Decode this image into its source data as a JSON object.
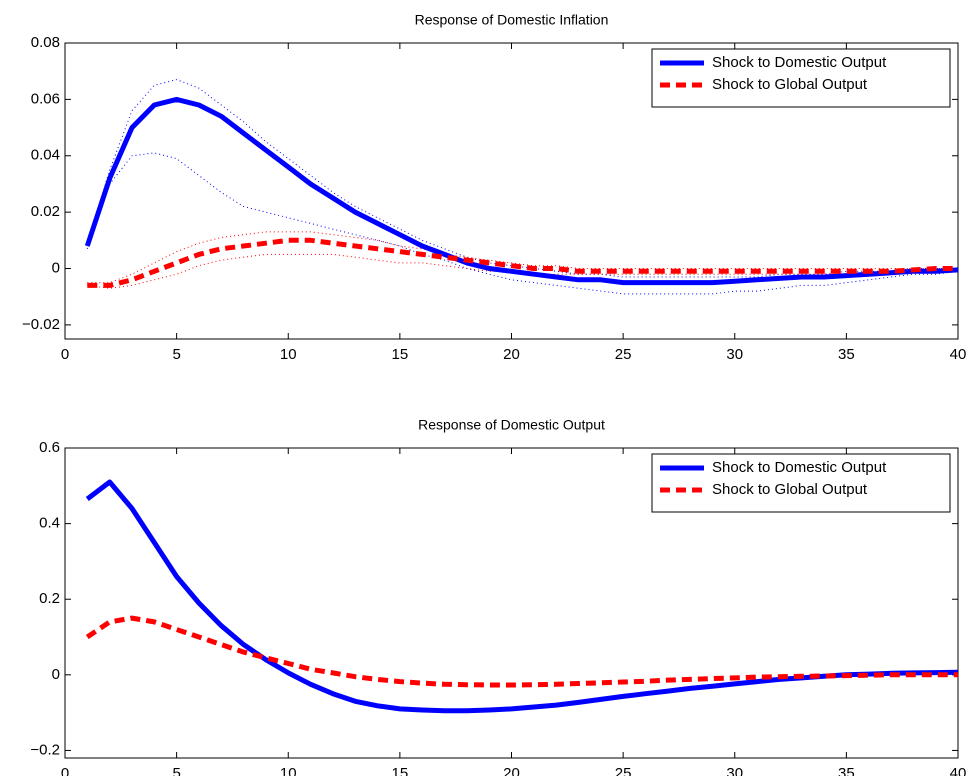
{
  "chart_data": [
    {
      "type": "line",
      "title": "Response of Domestic Inflation",
      "x": [
        1,
        2,
        3,
        4,
        5,
        6,
        7,
        8,
        9,
        10,
        11,
        12,
        13,
        14,
        15,
        16,
        17,
        18,
        19,
        20,
        21,
        22,
        23,
        24,
        25,
        26,
        27,
        28,
        29,
        30,
        31,
        32,
        33,
        34,
        35,
        36,
        37,
        38,
        39,
        40
      ],
      "xlim": [
        0,
        40
      ],
      "xticks": [
        0,
        5,
        10,
        15,
        20,
        25,
        30,
        35,
        40
      ],
      "ylim": [
        -0.025,
        0.08
      ],
      "yticks": [
        {
          "value": -0.02,
          "label": "−0.02"
        },
        0,
        0.02,
        0.04,
        0.06,
        0.08
      ],
      "grid": false,
      "legend": "upper-right",
      "series": [
        {
          "name": "Shock to Domestic Output",
          "color": "#0000ff",
          "style": "solid",
          "values": [
            0.008,
            0.032,
            0.05,
            0.058,
            0.06,
            0.058,
            0.054,
            0.048,
            0.042,
            0.036,
            0.03,
            0.025,
            0.02,
            0.016,
            0.012,
            0.008,
            0.005,
            0.002,
            0.0,
            -0.001,
            -0.002,
            -0.003,
            -0.004,
            -0.004,
            -0.005,
            -0.005,
            -0.005,
            -0.005,
            -0.005,
            -0.0045,
            -0.004,
            -0.0035,
            -0.003,
            -0.003,
            -0.0025,
            -0.002,
            -0.0015,
            -0.001,
            -0.001,
            -0.0005
          ]
        },
        {
          "name": "Shock to Global Output",
          "color": "#ff0000",
          "style": "dashed",
          "values": [
            -0.006,
            -0.006,
            -0.004,
            -0.001,
            0.002,
            0.005,
            0.007,
            0.008,
            0.009,
            0.01,
            0.01,
            0.009,
            0.008,
            0.007,
            0.006,
            0.005,
            0.004,
            0.003,
            0.002,
            0.001,
            0.0,
            0.0,
            -0.001,
            -0.001,
            -0.001,
            -0.001,
            -0.001,
            -0.001,
            -0.001,
            -0.001,
            -0.001,
            -0.001,
            -0.001,
            -0.001,
            -0.001,
            -0.001,
            -0.001,
            -0.0005,
            0.0,
            0.0
          ]
        }
      ],
      "bands": [
        {
          "color": "#0000ff",
          "upper": [
            0.009,
            0.035,
            0.056,
            0.065,
            0.067,
            0.064,
            0.058,
            0.052,
            0.045,
            0.039,
            0.033,
            0.027,
            0.022,
            0.018,
            0.014,
            0.01,
            0.007,
            0.004,
            0.002,
            0.001,
            0,
            -0.001,
            -0.002,
            -0.002,
            -0.003,
            -0.003,
            -0.003,
            -0.003,
            -0.003,
            -0.003,
            -0.003,
            -0.002,
            -0.002,
            -0.002,
            -0.001,
            -0.001,
            -0.001,
            0,
            0,
            0
          ],
          "lower": [
            0.007,
            0.03,
            0.04,
            0.041,
            0.039,
            0.033,
            0.027,
            0.022,
            0.02,
            0.018,
            0.016,
            0.014,
            0.012,
            0.01,
            0.008,
            0.005,
            0.003,
            0.0,
            -0.002,
            -0.004,
            -0.005,
            -0.006,
            -0.007,
            -0.008,
            -0.009,
            -0.009,
            -0.009,
            -0.009,
            -0.009,
            -0.008,
            -0.008,
            -0.007,
            -0.006,
            -0.006,
            -0.005,
            -0.004,
            -0.003,
            -0.002,
            -0.002,
            -0.001
          ]
        },
        {
          "color": "#ff0000",
          "upper": [
            -0.005,
            -0.005,
            -0.002,
            0.002,
            0.006,
            0.009,
            0.011,
            0.012,
            0.013,
            0.013,
            0.013,
            0.012,
            0.011,
            0.01,
            0.008,
            0.007,
            0.005,
            0.004,
            0.003,
            0.002,
            0.001,
            0.001,
            0,
            0,
            0,
            0,
            0,
            0,
            0,
            0,
            0,
            0,
            0,
            0,
            0,
            0,
            0,
            0,
            0,
            0
          ],
          "lower": [
            -0.006,
            -0.007,
            -0.006,
            -0.004,
            -0.002,
            0.001,
            0.003,
            0.004,
            0.005,
            0.005,
            0.005,
            0.005,
            0.004,
            0.003,
            0.002,
            0.002,
            0.001,
            0,
            -0.001,
            -0.001,
            -0.002,
            -0.002,
            -0.002,
            -0.002,
            -0.002,
            -0.002,
            -0.002,
            -0.002,
            -0.002,
            -0.002,
            -0.002,
            -0.002,
            -0.002,
            -0.002,
            -0.002,
            -0.002,
            -0.002,
            -0.001,
            -0.001,
            -0.001
          ]
        }
      ]
    },
    {
      "type": "line",
      "title": "Response of Domestic Output",
      "x": [
        1,
        2,
        3,
        4,
        5,
        6,
        7,
        8,
        9,
        10,
        11,
        12,
        13,
        14,
        15,
        16,
        17,
        18,
        19,
        20,
        21,
        22,
        23,
        24,
        25,
        26,
        27,
        28,
        29,
        30,
        31,
        32,
        33,
        34,
        35,
        36,
        37,
        38,
        39,
        40
      ],
      "xlim": [
        0,
        40
      ],
      "xticks": [
        0,
        5,
        10,
        15,
        20,
        25,
        30,
        35,
        40
      ],
      "ylim": [
        -0.22,
        0.6
      ],
      "yticks": [
        {
          "value": -0.2,
          "label": "−0.2"
        },
        0,
        0.2,
        0.4,
        0.6
      ],
      "grid": false,
      "legend": "upper-right",
      "series": [
        {
          "name": "Shock to Domestic Output",
          "color": "#0000ff",
          "style": "solid",
          "values": [
            0.465,
            0.51,
            0.44,
            0.35,
            0.26,
            0.19,
            0.13,
            0.08,
            0.04,
            0.005,
            -0.025,
            -0.05,
            -0.07,
            -0.082,
            -0.09,
            -0.093,
            -0.095,
            -0.095,
            -0.093,
            -0.09,
            -0.085,
            -0.08,
            -0.073,
            -0.065,
            -0.057,
            -0.05,
            -0.043,
            -0.036,
            -0.03,
            -0.024,
            -0.018,
            -0.012,
            -0.008,
            -0.004,
            0,
            0.002,
            0.004,
            0.005,
            0.006,
            0.007
          ]
        },
        {
          "name": "Shock to Global Output",
          "color": "#ff0000",
          "style": "dashed",
          "values": [
            0.1,
            0.14,
            0.15,
            0.14,
            0.12,
            0.1,
            0.08,
            0.06,
            0.045,
            0.03,
            0.015,
            0.005,
            -0.005,
            -0.012,
            -0.018,
            -0.022,
            -0.025,
            -0.026,
            -0.027,
            -0.027,
            -0.026,
            -0.025,
            -0.023,
            -0.021,
            -0.019,
            -0.017,
            -0.014,
            -0.012,
            -0.01,
            -0.008,
            -0.006,
            -0.005,
            -0.004,
            -0.003,
            -0.002,
            -0.001,
            0,
            0,
            0,
            0
          ]
        }
      ],
      "bands": []
    }
  ]
}
